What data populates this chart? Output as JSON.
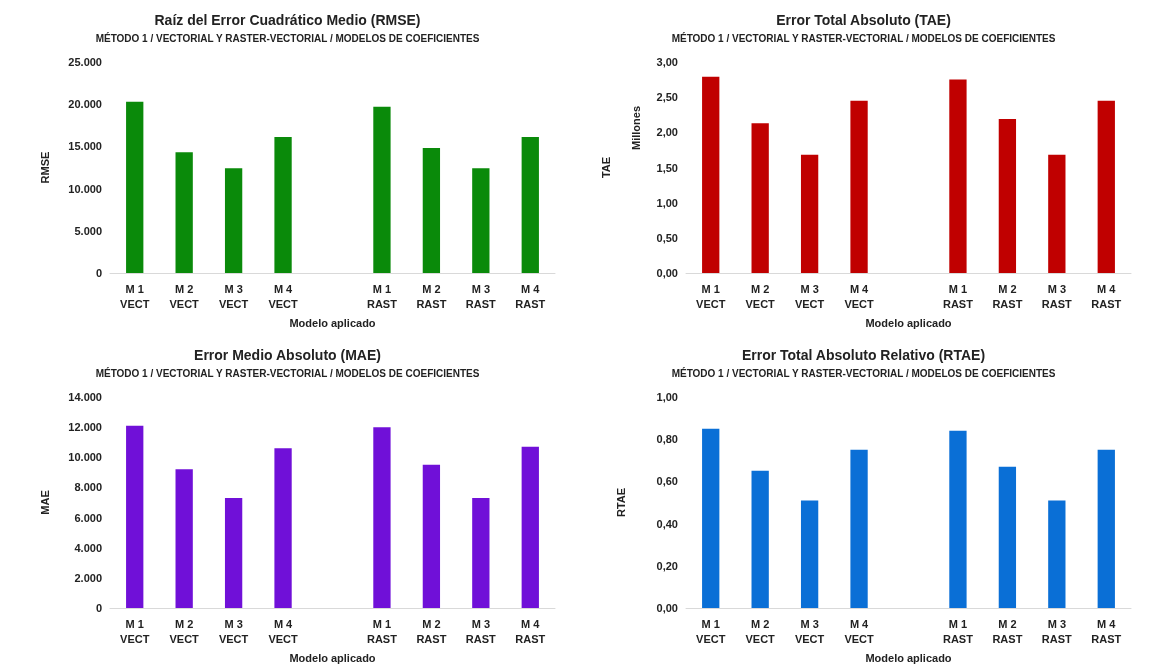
{
  "chart_data": [
    {
      "type": "bar",
      "title": "Raíz del Error Cuadrático Medio (RMSE)",
      "subtitle": "MÉTODO 1 / VECTORIAL Y RASTER-VECTORIAL / MODELOS DE COEFICIENTES",
      "xlabel": "Modelo aplicado",
      "ylabel": "RMSE",
      "categories": [
        "M 1\nVECT",
        "M 2\nVECT",
        "M 3\nVECT",
        "M 4\nVECT",
        null,
        "M 1\nRAST",
        "M 2\nRAST",
        "M 3\nRAST",
        "M 4\nRAST"
      ],
      "values": [
        20300,
        14300,
        12400,
        16100,
        null,
        19700,
        14800,
        12400,
        16100
      ],
      "color": "#0a8a0a",
      "ylim": [
        0,
        25000
      ],
      "yticks": [
        {
          "value": 0,
          "label": "0"
        },
        {
          "value": 5000,
          "label": "5.000"
        },
        {
          "value": 10000,
          "label": "10.000"
        },
        {
          "value": 15000,
          "label": "15.000"
        },
        {
          "value": 20000,
          "label": "20.000"
        },
        {
          "value": 25000,
          "label": "25.000"
        }
      ],
      "grid": false
    },
    {
      "type": "bar",
      "title": "Error Total Absoluto (TAE)",
      "subtitle": "MÉTODO 1 / VECTORIAL Y RASTER-VECTORIAL / MODELOS DE COEFICIENTES",
      "xlabel": "Modelo aplicado",
      "ylabel": "TAE",
      "annotations": [
        "Millones"
      ],
      "categories": [
        "M 1\nVECT",
        "M 2\nVECT",
        "M 3\nVECT",
        "M 4\nVECT",
        null,
        "M 1\nRAST",
        "M 2\nRAST",
        "M 3\nRAST",
        "M 4\nRAST"
      ],
      "values": [
        2.79,
        2.13,
        1.68,
        2.45,
        null,
        2.75,
        2.19,
        1.68,
        2.45
      ],
      "color": "#c00000",
      "ylim": [
        0,
        3
      ],
      "yticks": [
        {
          "value": 0,
          "label": "0,00"
        },
        {
          "value": 0.5,
          "label": "0,50"
        },
        {
          "value": 1,
          "label": "1,00"
        },
        {
          "value": 1.5,
          "label": "1,50"
        },
        {
          "value": 2,
          "label": "2,00"
        },
        {
          "value": 2.5,
          "label": "2,50"
        },
        {
          "value": 3,
          "label": "3,00"
        }
      ],
      "grid": false
    },
    {
      "type": "bar",
      "title": "Error Medio Absoluto (MAE)",
      "subtitle": "MÉTODO 1 / VECTORIAL Y RASTER-VECTORIAL / MODELOS DE COEFICIENTES",
      "xlabel": "Modelo aplicado",
      "ylabel": "MAE",
      "categories": [
        "M 1\nVECT",
        "M 2\nVECT",
        "M 3\nVECT",
        "M 4\nVECT",
        null,
        "M 1\nRAST",
        "M 2\nRAST",
        "M 3\nRAST",
        "M 4\nRAST"
      ],
      "values": [
        12100,
        9200,
        7300,
        10600,
        null,
        12000,
        9500,
        7300,
        10700
      ],
      "color": "#7010d8",
      "ylim": [
        0,
        14000
      ],
      "yticks": [
        {
          "value": 0,
          "label": "0"
        },
        {
          "value": 2000,
          "label": "2.000"
        },
        {
          "value": 4000,
          "label": "4.000"
        },
        {
          "value": 6000,
          "label": "6.000"
        },
        {
          "value": 8000,
          "label": "8.000"
        },
        {
          "value": 10000,
          "label": "10.000"
        },
        {
          "value": 12000,
          "label": "12.000"
        },
        {
          "value": 14000,
          "label": "14.000"
        }
      ],
      "grid": false
    },
    {
      "type": "bar",
      "title": "Error Total Absoluto Relativo (RTAE)",
      "subtitle": "MÉTODO 1 / VECTORIAL Y RASTER-VECTORIAL / MODELOS DE COEFICIENTES",
      "xlabel": "Modelo aplicado",
      "ylabel": "RTAE",
      "categories": [
        "M 1\nVECT",
        "M 2\nVECT",
        "M 3\nVECT",
        "M 4\nVECT",
        null,
        "M 1\nRAST",
        "M 2\nRAST",
        "M 3\nRAST",
        "M 4\nRAST"
      ],
      "values": [
        0.85,
        0.65,
        0.51,
        0.75,
        null,
        0.84,
        0.67,
        0.51,
        0.75
      ],
      "color": "#0a6fd6",
      "ylim": [
        0,
        1
      ],
      "yticks": [
        {
          "value": 0,
          "label": "0,00"
        },
        {
          "value": 0.2,
          "label": "0,20"
        },
        {
          "value": 0.4,
          "label": "0,40"
        },
        {
          "value": 0.6,
          "label": "0,60"
        },
        {
          "value": 0.8,
          "label": "0,80"
        },
        {
          "value": 1,
          "label": "1,00"
        }
      ],
      "grid": false
    }
  ]
}
